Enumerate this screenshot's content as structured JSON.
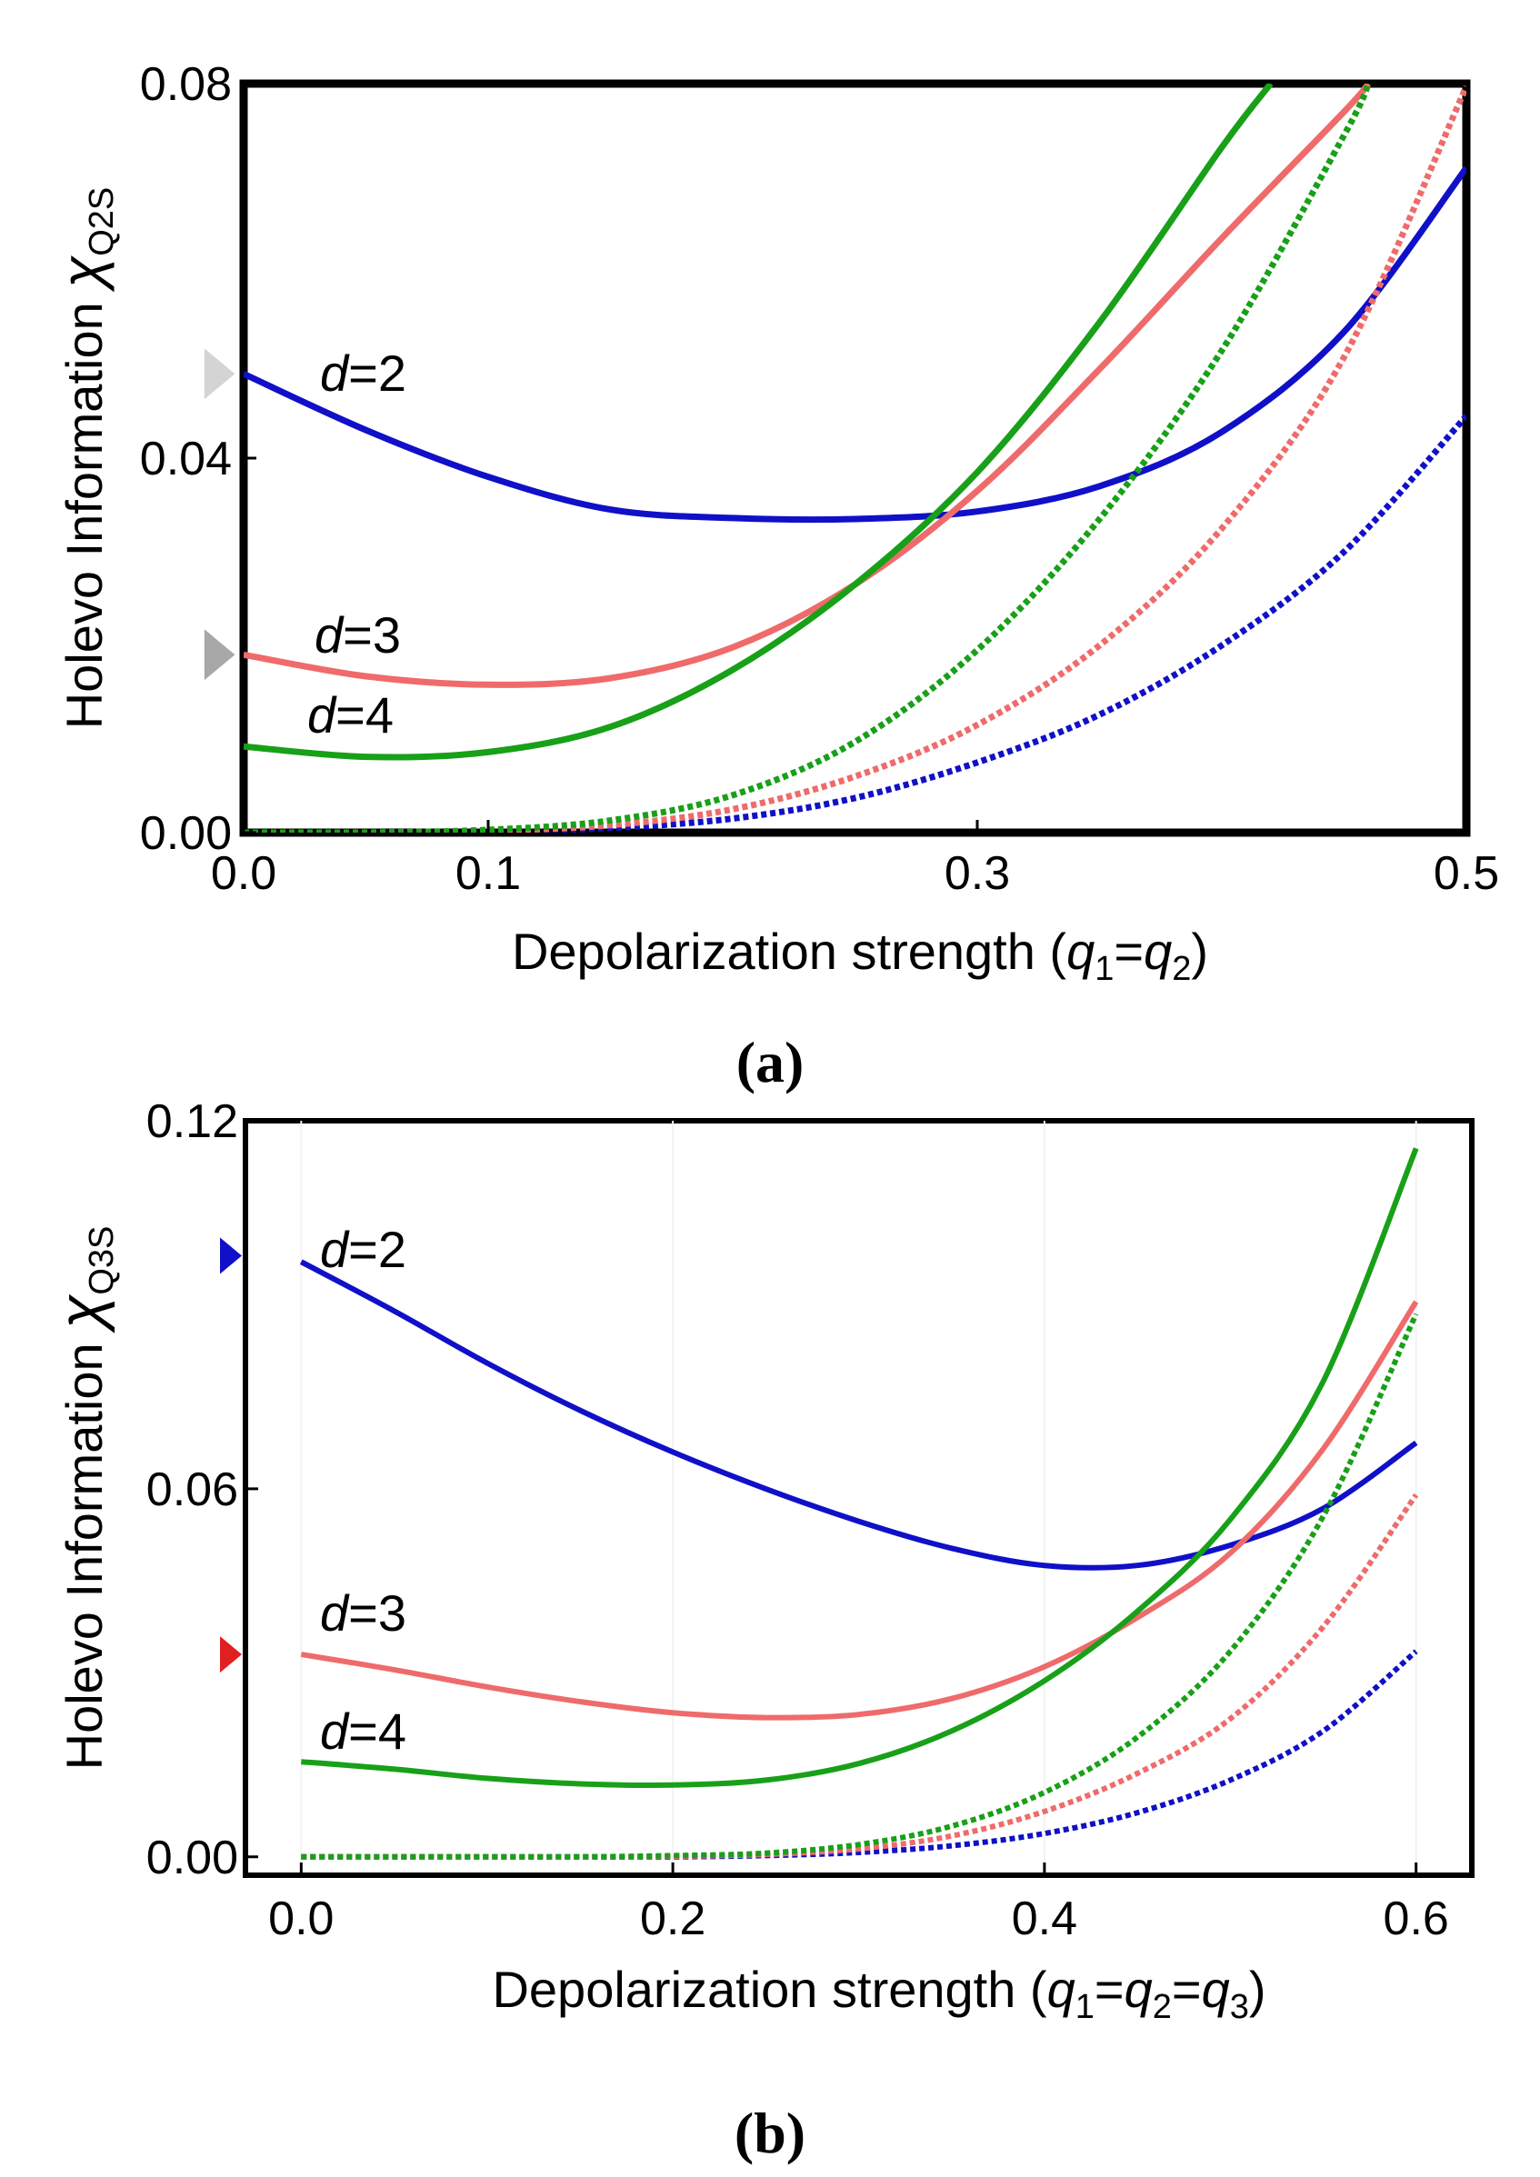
{
  "colors": {
    "d2": "#1010c8",
    "d3": "#ef6b6b",
    "d4": "#18a018",
    "frame": "#000000",
    "marker_a": "#c8c8c8",
    "marker_b_d2": "#1010c8",
    "marker_b_d3": "#e02020"
  },
  "chart_data": [
    {
      "type": "line",
      "panel_label": "(a)",
      "xlabel_main": "Depolarization strength (",
      "xlabel_q1": "q",
      "xlabel_s1": "1",
      "xlabel_eq": "=",
      "xlabel_q2": "q",
      "xlabel_s2": "2",
      "xlabel_close": ")",
      "ylabel_main": "Holevo Information ",
      "ylabel_chi": "χ",
      "ylabel_sub": "Q2S",
      "xlim": [
        0,
        0.5
      ],
      "ylim": [
        0,
        0.08
      ],
      "xticks": [
        0.0,
        0.1,
        0.3,
        0.5
      ],
      "xtick_labels": [
        "0.0",
        "0.1",
        "0.3",
        "0.5"
      ],
      "yticks": [
        0,
        0.04,
        0.08
      ],
      "ytick_labels": [
        "0.00",
        "0.04",
        "0.08"
      ],
      "curve_labels": [
        {
          "id": "d2",
          "name": "d",
          "text": "=2"
        },
        {
          "id": "d3",
          "name": "d",
          "text": "=3"
        },
        {
          "id": "d4",
          "name": "d",
          "text": "=4"
        }
      ],
      "markers": [
        {
          "series": "d2",
          "y": 0.049
        },
        {
          "series": "d3",
          "y": 0.019
        }
      ],
      "series": [
        {
          "name": "d=2 solid",
          "id": "d2",
          "style": "solid",
          "x": [
            0,
            0.05,
            0.1,
            0.15,
            0.2,
            0.25,
            0.3,
            0.35,
            0.4,
            0.45,
            0.5
          ],
          "y": [
            0.049,
            0.043,
            0.038,
            0.0345,
            0.0336,
            0.0335,
            0.0343,
            0.037,
            0.0428,
            0.0535,
            0.071
          ]
        },
        {
          "name": "d=3 solid",
          "id": "d3",
          "style": "solid",
          "x": [
            0,
            0.05,
            0.1,
            0.15,
            0.2,
            0.25,
            0.3,
            0.35,
            0.4,
            0.45,
            0.46
          ],
          "y": [
            0.019,
            0.0167,
            0.0158,
            0.0165,
            0.0198,
            0.0265,
            0.0365,
            0.0495,
            0.0635,
            0.077,
            0.08
          ]
        },
        {
          "name": "d=4 solid",
          "id": "d4",
          "style": "solid",
          "x": [
            0,
            0.05,
            0.1,
            0.15,
            0.2,
            0.25,
            0.3,
            0.35,
            0.4,
            0.42
          ],
          "y": [
            0.0092,
            0.0081,
            0.0086,
            0.0113,
            0.0174,
            0.0265,
            0.0385,
            0.0545,
            0.0732,
            0.08
          ]
        },
        {
          "name": "d=2 dotted",
          "id": "d2",
          "style": "dotted",
          "x": [
            0,
            0.05,
            0.1,
            0.15,
            0.2,
            0.25,
            0.3,
            0.35,
            0.4,
            0.45,
            0.5
          ],
          "y": [
            0,
            0,
            0.0001,
            0.0005,
            0.0015,
            0.0037,
            0.0075,
            0.0126,
            0.02,
            0.03,
            0.0445
          ]
        },
        {
          "name": "d=3 dotted",
          "id": "d3",
          "style": "dotted",
          "x": [
            0,
            0.05,
            0.1,
            0.15,
            0.2,
            0.25,
            0.3,
            0.35,
            0.4,
            0.45,
            0.5
          ],
          "y": [
            0,
            0,
            0.0002,
            0.0008,
            0.0025,
            0.006,
            0.0115,
            0.02,
            0.0325,
            0.0508,
            0.0797
          ]
        },
        {
          "name": "d=4 dotted",
          "id": "d4",
          "style": "dotted",
          "x": [
            0,
            0.05,
            0.1,
            0.15,
            0.2,
            0.25,
            0.3,
            0.35,
            0.4,
            0.45,
            0.46
          ],
          "y": [
            0,
            0,
            0.0003,
            0.0013,
            0.004,
            0.0097,
            0.0195,
            0.0335,
            0.0515,
            0.0745,
            0.08
          ]
        }
      ]
    },
    {
      "type": "line",
      "panel_label": "(b)",
      "xlabel_main": "Depolarization strength (",
      "xlabel_q1": "q",
      "xlabel_s1": "1",
      "xlabel_eq": "=",
      "xlabel_q2": "q",
      "xlabel_s2": "2",
      "xlabel_eq2": "=",
      "xlabel_q3": "q",
      "xlabel_s3": "3",
      "xlabel_close": ")",
      "ylabel_main": "Holevo Information ",
      "ylabel_chi": "χ",
      "ylabel_sub": "Q3S",
      "xlim": [
        -0.03,
        0.63
      ],
      "ylim": [
        -0.003,
        0.12
      ],
      "xticks": [
        0.0,
        0.2,
        0.4,
        0.6
      ],
      "xtick_labels": [
        "0.0",
        "0.2",
        "0.4",
        "0.6"
      ],
      "yticks": [
        0,
        0.06,
        0.12
      ],
      "ytick_labels": [
        "0.00",
        "0.06",
        "0.12"
      ],
      "curve_labels": [
        {
          "id": "d2",
          "name": "d",
          "text": "=2"
        },
        {
          "id": "d3",
          "name": "d",
          "text": "=3"
        },
        {
          "id": "d4",
          "name": "d",
          "text": "=4"
        }
      ],
      "markers": [
        {
          "series": "d2",
          "y": 0.098
        },
        {
          "series": "d3",
          "y": 0.033
        }
      ],
      "series": [
        {
          "name": "d=2 solid",
          "id": "d2",
          "style": "solid",
          "x": [
            0,
            0.05,
            0.1,
            0.15,
            0.2,
            0.25,
            0.3,
            0.35,
            0.4,
            0.45,
            0.5,
            0.55,
            0.6
          ],
          "y": [
            0.097,
            0.089,
            0.0805,
            0.0728,
            0.066,
            0.06,
            0.0547,
            0.0503,
            0.0475,
            0.0475,
            0.0508,
            0.0568,
            0.0675
          ]
        },
        {
          "name": "d=3 solid",
          "id": "d3",
          "style": "solid",
          "x": [
            0,
            0.05,
            0.1,
            0.15,
            0.2,
            0.25,
            0.3,
            0.35,
            0.4,
            0.45,
            0.5,
            0.55,
            0.6
          ],
          "y": [
            0.033,
            0.0305,
            0.0277,
            0.0253,
            0.0235,
            0.0227,
            0.0232,
            0.0258,
            0.031,
            0.039,
            0.0495,
            0.0665,
            0.0905
          ]
        },
        {
          "name": "d=4 solid",
          "id": "d4",
          "style": "solid",
          "x": [
            0,
            0.05,
            0.1,
            0.15,
            0.2,
            0.25,
            0.3,
            0.35,
            0.4,
            0.45,
            0.5,
            0.55,
            0.6
          ],
          "y": [
            0.0155,
            0.0143,
            0.0128,
            0.0119,
            0.0117,
            0.0125,
            0.0152,
            0.0205,
            0.0287,
            0.04,
            0.055,
            0.0775,
            0.1155
          ]
        },
        {
          "name": "d=2 dotted",
          "id": "d2",
          "style": "dotted",
          "x": [
            0,
            0.05,
            0.1,
            0.15,
            0.2,
            0.25,
            0.3,
            0.35,
            0.4,
            0.45,
            0.5,
            0.55,
            0.6
          ],
          "y": [
            0,
            0,
            0,
            0,
            0,
            0.0002,
            0.0007,
            0.0018,
            0.0038,
            0.0072,
            0.0125,
            0.0205,
            0.0335
          ]
        },
        {
          "name": "d=3 dotted",
          "id": "d3",
          "style": "dotted",
          "x": [
            0,
            0.05,
            0.1,
            0.15,
            0.2,
            0.25,
            0.3,
            0.35,
            0.4,
            0.45,
            0.5,
            0.55,
            0.6
          ],
          "y": [
            0,
            0,
            0,
            0,
            0.0001,
            0.0004,
            0.0013,
            0.0034,
            0.0074,
            0.0136,
            0.0225,
            0.0375,
            0.059
          ]
        },
        {
          "name": "d=4 dotted",
          "id": "d4",
          "style": "dotted",
          "x": [
            0,
            0.05,
            0.1,
            0.15,
            0.2,
            0.25,
            0.3,
            0.35,
            0.4,
            0.45,
            0.5,
            0.55,
            0.6
          ],
          "y": [
            0,
            0,
            0,
            0,
            0.0002,
            0.0006,
            0.002,
            0.005,
            0.0105,
            0.0195,
            0.0335,
            0.0555,
            0.0885
          ]
        }
      ]
    }
  ]
}
